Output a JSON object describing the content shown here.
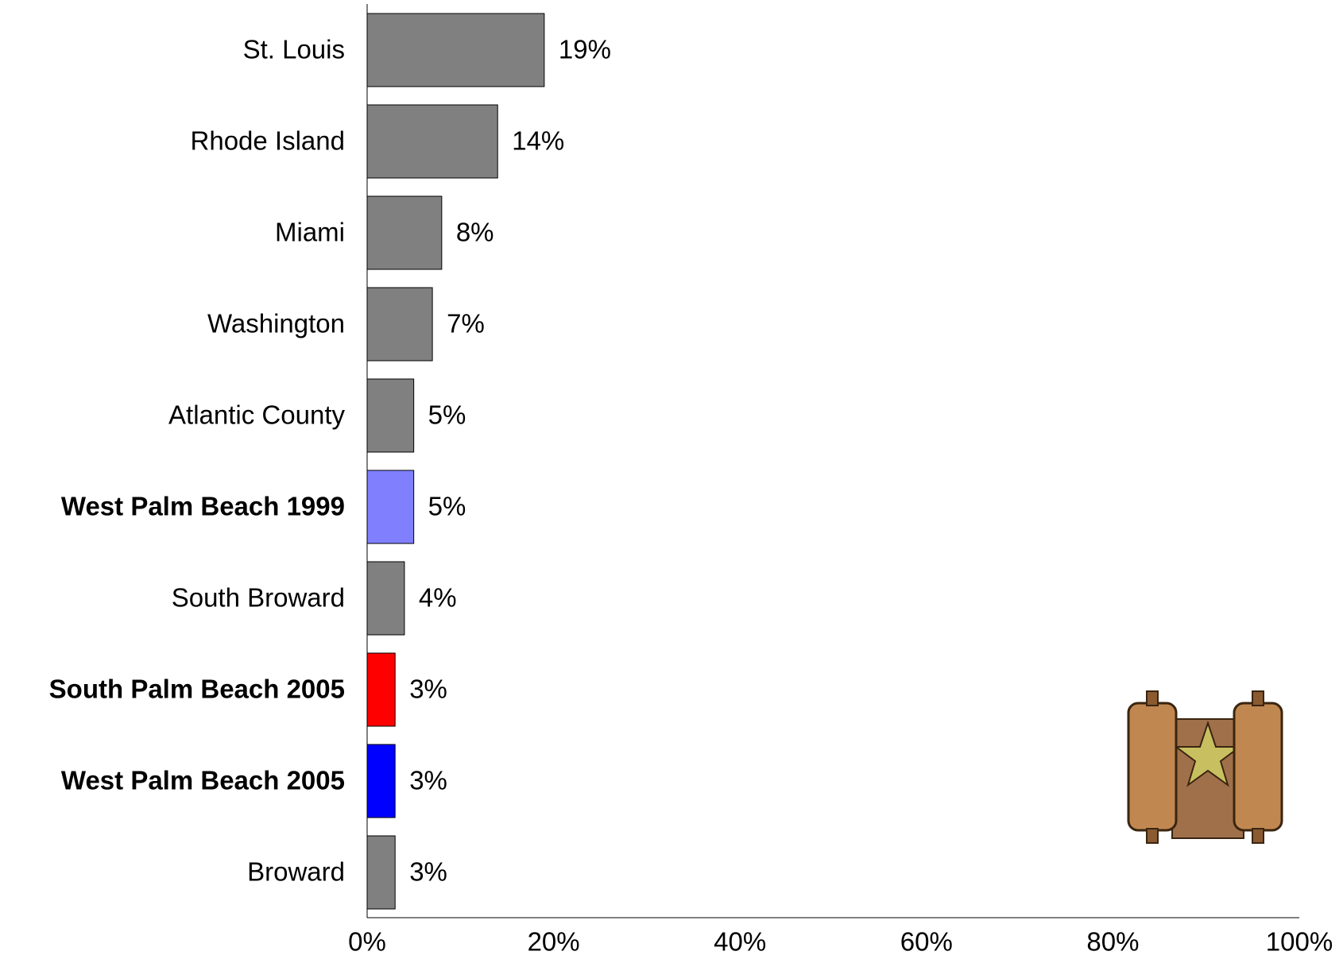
{
  "chart_data": {
    "type": "hbar",
    "categories": [
      "St. Louis",
      "Rhode Island",
      "Miami",
      "Washington",
      "Atlantic County",
      "West Palm Beach 1999",
      "South Broward",
      "South Palm Beach 2005",
      "West Palm Beach 2005",
      "Broward"
    ],
    "values": [
      19,
      14,
      8,
      7,
      5,
      5,
      4,
      3,
      3,
      3
    ],
    "value_labels": [
      "19%",
      "14%",
      "8%",
      "7%",
      "5%",
      "5%",
      "4%",
      "3%",
      "3%",
      "3%"
    ],
    "colors": [
      "#808080",
      "#808080",
      "#808080",
      "#808080",
      "#808080",
      "#8080ff",
      "#808080",
      "#ff0000",
      "#0000ff",
      "#808080"
    ],
    "label_colors": [
      "#000000",
      "#000000",
      "#ff0000",
      "#000000",
      "#000000",
      "#8080ff",
      "#000000",
      "#ff0000",
      "#0000ff",
      "#ff0000"
    ],
    "label_bold": [
      false,
      false,
      false,
      false,
      false,
      true,
      false,
      true,
      true,
      false
    ],
    "xlim": [
      0,
      100
    ],
    "xticks": [
      {
        "value": 0,
        "label": "0%"
      },
      {
        "value": 20,
        "label": "20%"
      },
      {
        "value": 40,
        "label": "40%"
      },
      {
        "value": 60,
        "label": "60%"
      },
      {
        "value": 80,
        "label": "80%"
      },
      {
        "value": 100,
        "label": "100%"
      }
    ],
    "grid": false
  }
}
